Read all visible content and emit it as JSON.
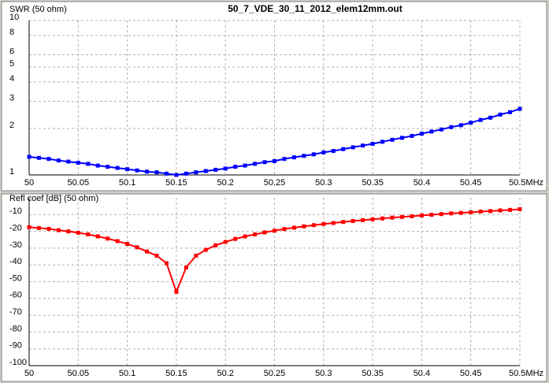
{
  "chart_data": [
    {
      "type": "line",
      "title": "50_7_VDE_30_11_2012_elem12mm.out",
      "y_label": "SWR (50 ohm)",
      "log_y": true,
      "grid": true,
      "x": [
        50,
        50.01,
        50.02,
        50.03,
        50.04,
        50.05,
        50.06,
        50.07,
        50.08,
        50.09,
        50.1,
        50.11,
        50.12,
        50.13,
        50.14,
        50.15,
        50.16,
        50.17,
        50.18,
        50.19,
        50.2,
        50.21,
        50.22,
        50.23,
        50.24,
        50.25,
        50.26,
        50.27,
        50.28,
        50.29,
        50.3,
        50.31,
        50.32,
        50.33,
        50.34,
        50.35,
        50.36,
        50.37,
        50.38,
        50.39,
        50.4,
        50.41,
        50.42,
        50.43,
        50.44,
        50.45,
        50.46,
        50.47,
        50.48,
        50.49,
        50.5
      ],
      "series": [
        {
          "color": "#0000ff",
          "values": [
            1.31,
            1.29,
            1.27,
            1.24,
            1.22,
            1.2,
            1.18,
            1.15,
            1.13,
            1.11,
            1.09,
            1.07,
            1.05,
            1.04,
            1.02,
            1.0,
            1.02,
            1.04,
            1.06,
            1.08,
            1.1,
            1.13,
            1.15,
            1.18,
            1.21,
            1.23,
            1.27,
            1.3,
            1.33,
            1.36,
            1.4,
            1.43,
            1.47,
            1.51,
            1.55,
            1.59,
            1.64,
            1.69,
            1.74,
            1.79,
            1.85,
            1.91,
            1.97,
            2.04,
            2.1,
            2.18,
            2.27,
            2.35,
            2.46,
            2.55,
            2.68
          ]
        }
      ],
      "xlim": [
        50,
        50.5
      ],
      "xticks": [
        50,
        50.05,
        50.1,
        50.15,
        50.2,
        50.25,
        50.3,
        50.35,
        50.4,
        50.45,
        {
          "value": 50.5,
          "label": "50.5MHz"
        }
      ],
      "ylim": [
        1,
        10
      ],
      "yticks": [
        1,
        2,
        3,
        4,
        5,
        6,
        8,
        10
      ],
      "label_color": "#0000c0"
    },
    {
      "type": "line",
      "y_label": "Refl coef [dB] (50 ohm)",
      "grid": true,
      "x": [
        50,
        50.01,
        50.02,
        50.03,
        50.04,
        50.05,
        50.06,
        50.07,
        50.08,
        50.09,
        50.1,
        50.11,
        50.12,
        50.13,
        50.14,
        50.15,
        50.16,
        50.17,
        50.18,
        50.19,
        50.2,
        50.21,
        50.22,
        50.23,
        50.24,
        50.25,
        50.26,
        50.27,
        50.28,
        50.29,
        50.3,
        50.31,
        50.32,
        50.33,
        50.34,
        50.35,
        50.36,
        50.37,
        50.38,
        50.39,
        50.4,
        50.41,
        50.42,
        50.43,
        50.44,
        50.45,
        50.46,
        50.47,
        50.48,
        50.49,
        50.5
      ],
      "series": [
        {
          "color": "#ff0000",
          "values": [
            -17.5,
            -18,
            -18.5,
            -19.3,
            -20,
            -20.8,
            -21.8,
            -23,
            -24.3,
            -25.8,
            -27.5,
            -29.5,
            -32,
            -34.5,
            -39,
            -56,
            -41.5,
            -34.5,
            -31,
            -28.3,
            -26.3,
            -24.5,
            -23,
            -21.8,
            -20.6,
            -19.6,
            -18.6,
            -17.8,
            -17,
            -16.3,
            -15.6,
            -15,
            -14.4,
            -13.8,
            -13.3,
            -12.8,
            -12.3,
            -11.8,
            -11.4,
            -11,
            -10.5,
            -10.1,
            -9.7,
            -9.3,
            -9,
            -8.6,
            -8.2,
            -7.9,
            -7.5,
            -7.2,
            -6.8
          ]
        }
      ],
      "xlim": [
        50,
        50.5
      ],
      "xticks": [
        50,
        50.05,
        50.1,
        50.15,
        50.2,
        50.25,
        50.3,
        50.35,
        50.4,
        50.45,
        {
          "value": 50.5,
          "label": "50.5MHz"
        }
      ],
      "ylim": [
        -100,
        0
      ],
      "yticks": [
        -10,
        -20,
        -30,
        -40,
        -50,
        -60,
        -70,
        -80,
        -90,
        -100
      ],
      "label_color": "#c00000"
    }
  ]
}
